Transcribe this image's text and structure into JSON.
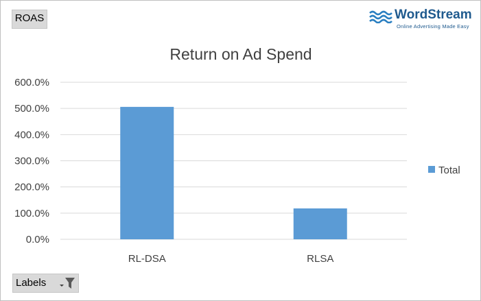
{
  "header": {
    "value_field": "ROAS"
  },
  "footer": {
    "axis_field": "Labels"
  },
  "logo": {
    "name": "WordStream",
    "tagline": "Online Advertising Made Easy"
  },
  "colors": {
    "bar": "#5b9bd5",
    "grid": "#d9d9d9",
    "text": "#404040",
    "brand": "#1f5a8e"
  },
  "chart_data": {
    "type": "bar",
    "title": "Return on Ad Spend",
    "xlabel": "",
    "ylabel": "",
    "categories": [
      "RL-DSA",
      "RLSA"
    ],
    "series": [
      {
        "name": "Total",
        "values": [
          5.06,
          1.18
        ]
      }
    ],
    "ylim": [
      0,
      6
    ],
    "yticks": [
      0,
      1,
      2,
      3,
      4,
      5,
      6
    ],
    "ytick_labels": [
      "0.0%",
      "100.0%",
      "200.0%",
      "300.0%",
      "400.0%",
      "500.0%",
      "600.0%"
    ],
    "grid": true,
    "legend": "right"
  }
}
